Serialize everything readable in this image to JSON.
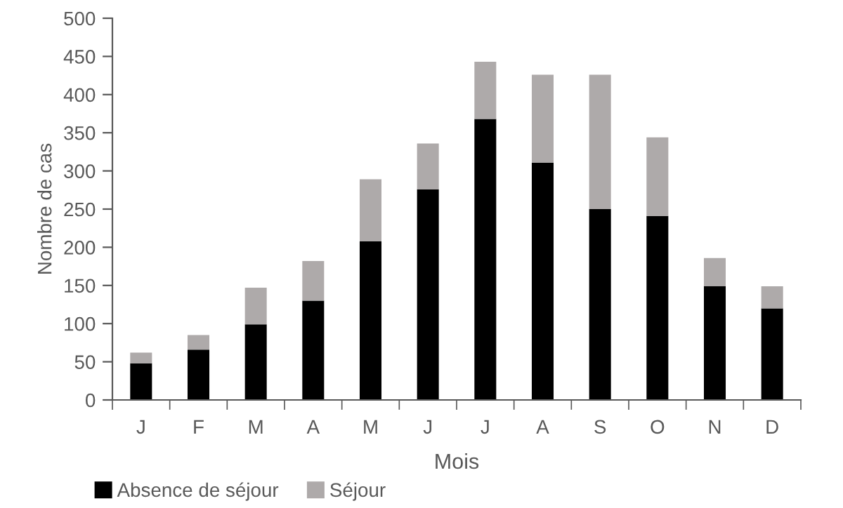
{
  "chart_data": {
    "type": "bar",
    "stacked": true,
    "xlabel": "Mois",
    "ylabel": "Nombre de cas",
    "categories": [
      "J",
      "F",
      "M",
      "A",
      "M",
      "J",
      "J",
      "A",
      "S",
      "O",
      "N",
      "D"
    ],
    "series": [
      {
        "name": "Absence de séjour",
        "color": "#000000",
        "values": [
          48,
          66,
          99,
          130,
          208,
          276,
          368,
          311,
          250,
          241,
          149,
          120
        ]
      },
      {
        "name": "Séjour",
        "color": "#aeaaaa",
        "values": [
          14,
          19,
          48,
          52,
          81,
          60,
          75,
          115,
          176,
          103,
          37,
          29
        ]
      }
    ],
    "ylim": [
      0,
      500
    ],
    "yticks": [
      0,
      50,
      100,
      150,
      200,
      250,
      300,
      350,
      400,
      450,
      500
    ],
    "grid": false,
    "legend": "bottom left"
  }
}
